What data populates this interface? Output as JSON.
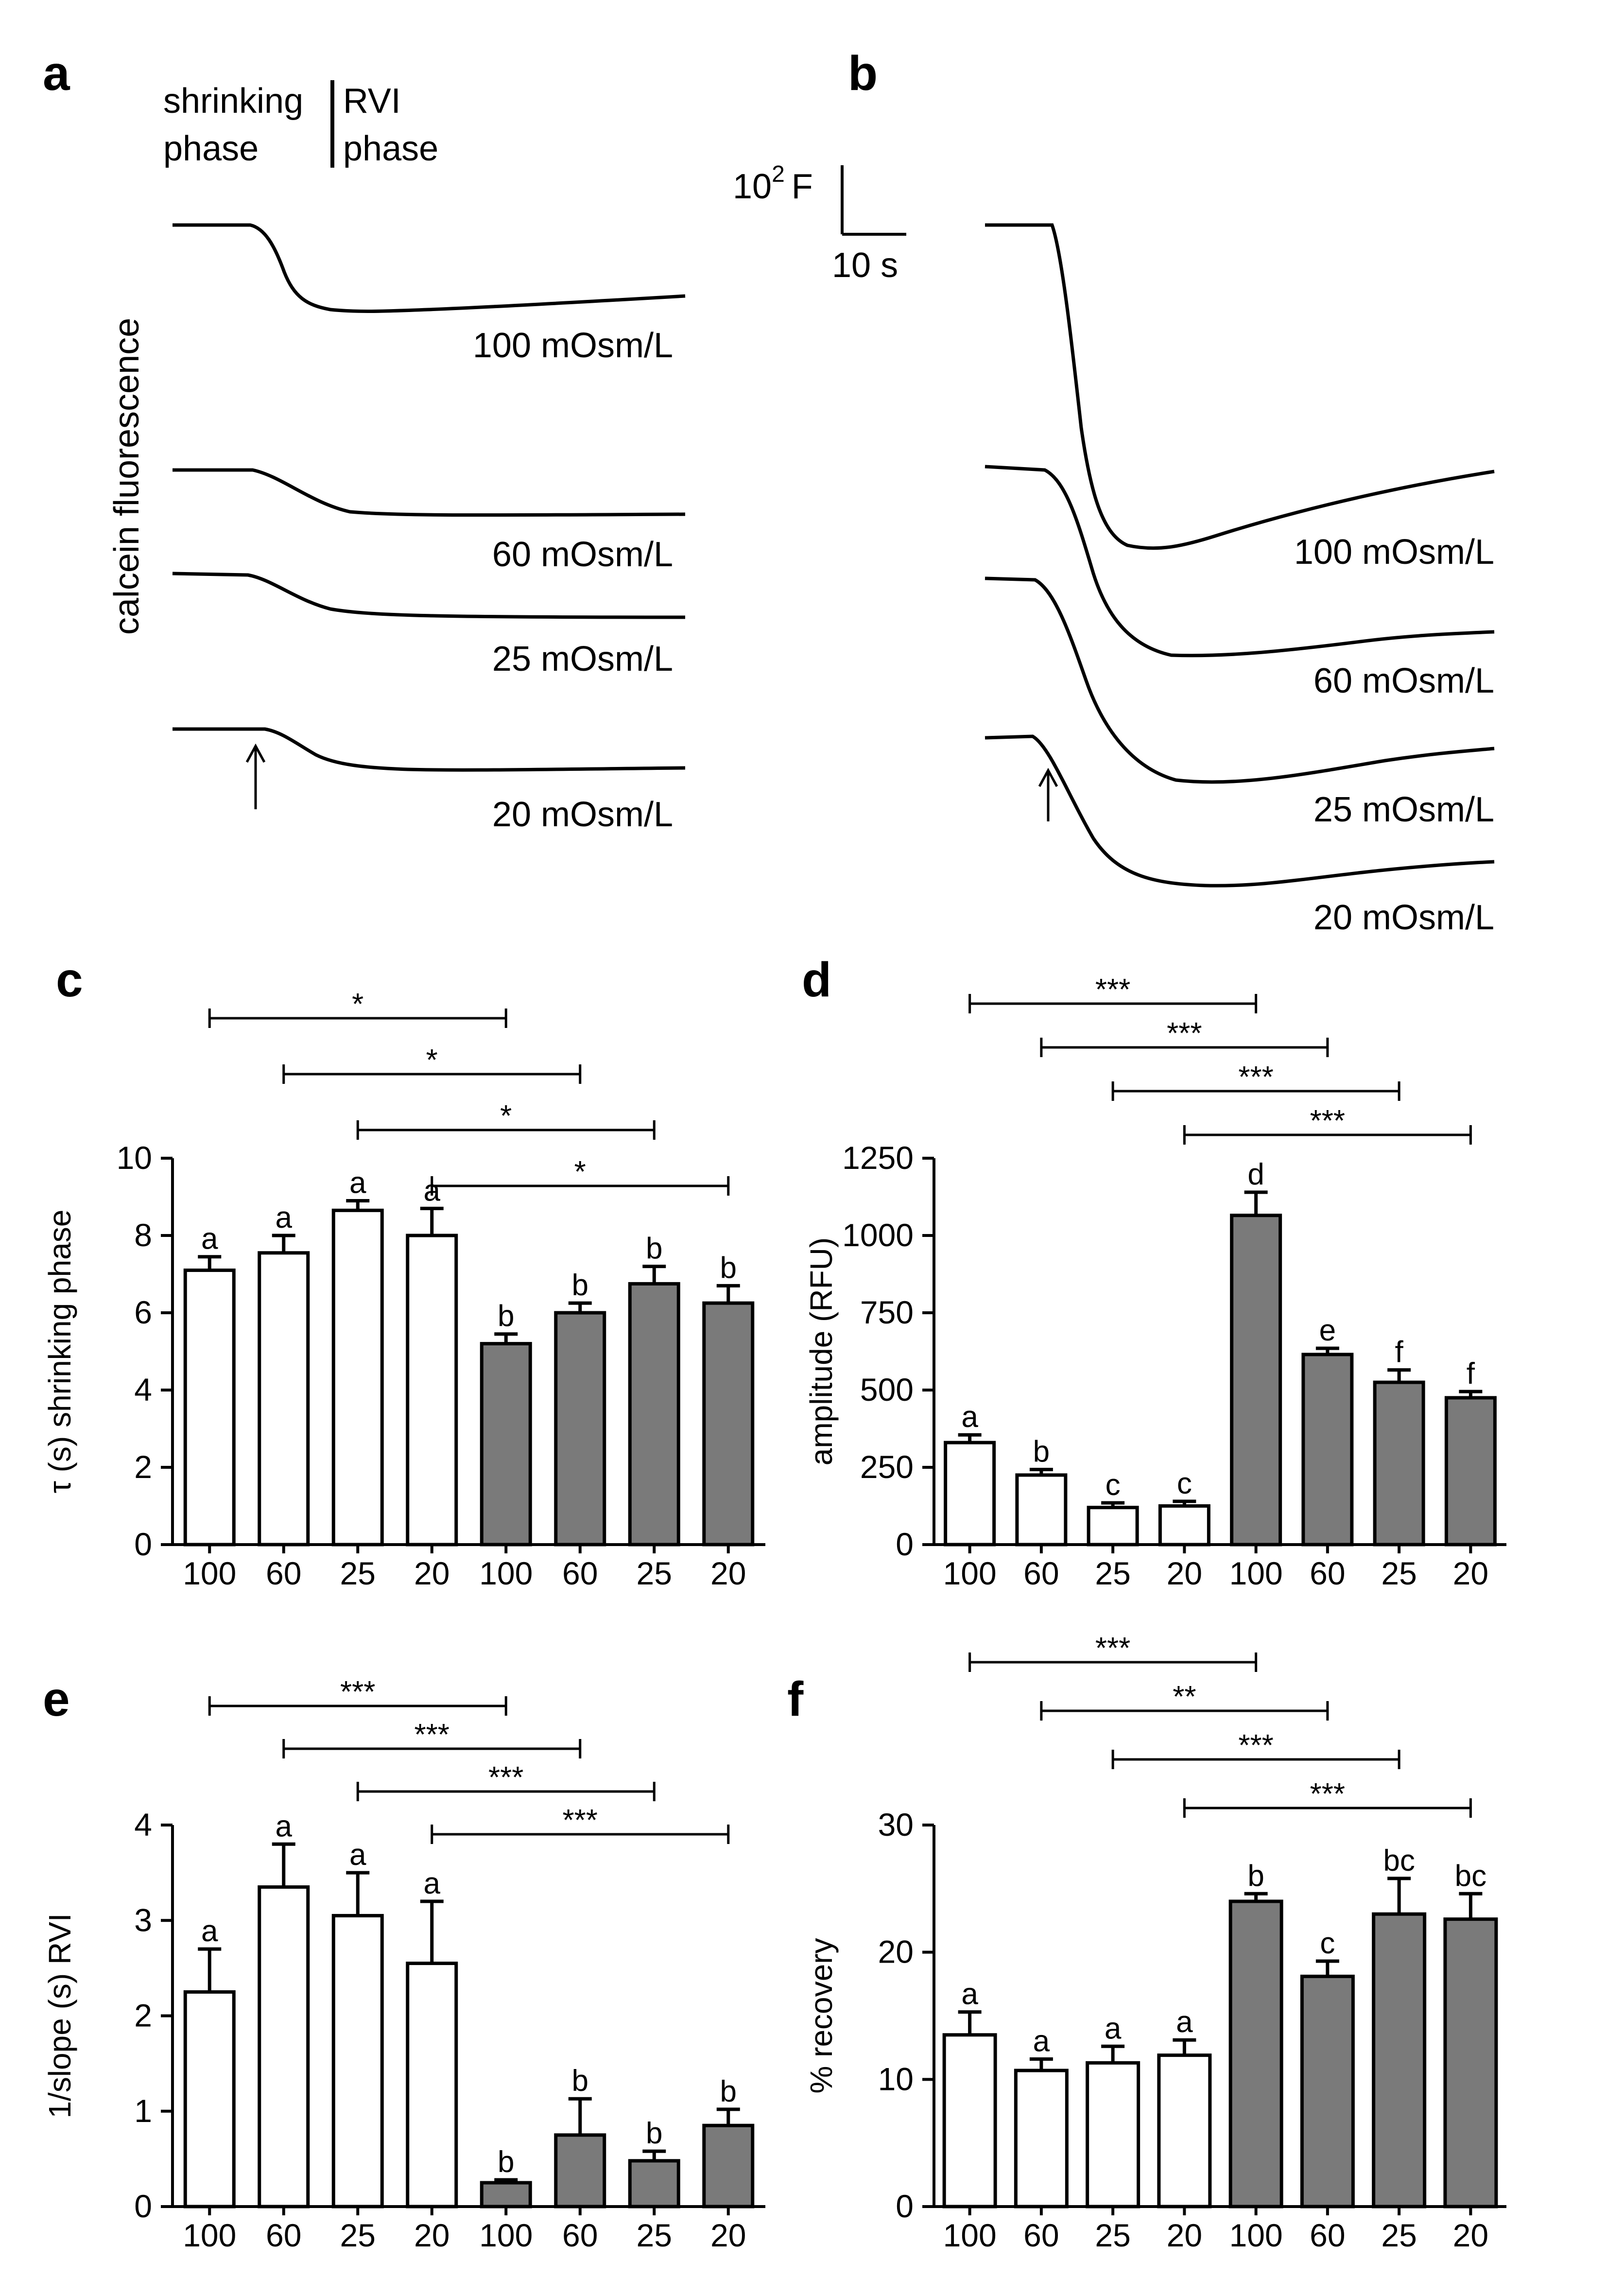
{
  "panels": {
    "a": {
      "letter": "a",
      "phase_left": [
        "shrinking",
        "phase"
      ],
      "phase_right": [
        "RVI",
        "phase"
      ],
      "ylabel": "calcein fluorescence",
      "traces": [
        "100 mOsm/L",
        "60 mOsm/L",
        "25 mOsm/L",
        "20 mOsm/L"
      ]
    },
    "b": {
      "letter": "b",
      "scale_bar": {
        "vertical_base": "10",
        "vertical_exp": "2",
        "vertical_unit": "F",
        "horizontal": "10 s"
      },
      "traces": [
        "100 mOsm/L",
        "60 mOsm/L",
        "25 mOsm/L",
        "20 mOsm/L"
      ]
    }
  },
  "chart_data": [
    {
      "panel": "c",
      "type": "bar",
      "ylabel": "τ (s) shrinking phase",
      "categories": [
        "100",
        "60",
        "25",
        "20",
        "100",
        "60",
        "25",
        "20"
      ],
      "values": [
        7.1,
        7.55,
        8.65,
        8.0,
        5.2,
        6.0,
        6.75,
        6.25
      ],
      "errors": [
        0.35,
        0.45,
        0.25,
        0.7,
        0.25,
        0.25,
        0.45,
        0.45
      ],
      "letters": [
        "a",
        "a",
        "a",
        "a",
        "b",
        "b",
        "b",
        "b"
      ],
      "fills": [
        "#ffffff",
        "#ffffff",
        "#ffffff",
        "#ffffff",
        "#7a7a7a",
        "#7a7a7a",
        "#7a7a7a",
        "#7a7a7a"
      ],
      "ylim": [
        0,
        10
      ],
      "yticks": [
        0,
        2,
        4,
        6,
        8,
        10
      ],
      "comparisons": [
        {
          "from": 0,
          "to": 4,
          "label": "*"
        },
        {
          "from": 1,
          "to": 5,
          "label": "*"
        },
        {
          "from": 2,
          "to": 6,
          "label": "*"
        },
        {
          "from": 3,
          "to": 7,
          "label": "*"
        }
      ]
    },
    {
      "panel": "d",
      "type": "bar",
      "ylabel": "amplitude (RFU)",
      "categories": [
        "100",
        "60",
        "25",
        "20",
        "100",
        "60",
        "25",
        "20"
      ],
      "values": [
        330,
        225,
        120,
        125,
        1065,
        615,
        525,
        475
      ],
      "errors": [
        25,
        18,
        15,
        15,
        75,
        20,
        40,
        20
      ],
      "letters": [
        "a",
        "b",
        "c",
        "c",
        "d",
        "e",
        "f",
        "f"
      ],
      "fills": [
        "#ffffff",
        "#ffffff",
        "#ffffff",
        "#ffffff",
        "#7a7a7a",
        "#7a7a7a",
        "#7a7a7a",
        "#7a7a7a"
      ],
      "ylim": [
        0,
        1250
      ],
      "yticks": [
        0,
        250,
        500,
        750,
        1000,
        1250
      ],
      "comparisons": [
        {
          "from": 0,
          "to": 4,
          "label": "***"
        },
        {
          "from": 1,
          "to": 5,
          "label": "***"
        },
        {
          "from": 2,
          "to": 6,
          "label": "***"
        },
        {
          "from": 3,
          "to": 7,
          "label": "***"
        }
      ]
    },
    {
      "panel": "e",
      "type": "bar",
      "ylabel": "1/slope (s) RVI",
      "categories": [
        "100",
        "60",
        "25",
        "20",
        "100",
        "60",
        "25",
        "20"
      ],
      "values": [
        2.25,
        3.35,
        3.05,
        2.55,
        0.25,
        0.75,
        0.48,
        0.85
      ],
      "errors": [
        0.45,
        0.45,
        0.45,
        0.65,
        0.03,
        0.38,
        0.1,
        0.17
      ],
      "letters": [
        "a",
        "a",
        "a",
        "a",
        "b",
        "b",
        "b",
        "b"
      ],
      "fills": [
        "#ffffff",
        "#ffffff",
        "#ffffff",
        "#ffffff",
        "#7a7a7a",
        "#7a7a7a",
        "#7a7a7a",
        "#7a7a7a"
      ],
      "ylim": [
        0,
        4
      ],
      "yticks": [
        0,
        1,
        2,
        3,
        4
      ],
      "comparisons": [
        {
          "from": 0,
          "to": 4,
          "label": "***"
        },
        {
          "from": 1,
          "to": 5,
          "label": "***"
        },
        {
          "from": 2,
          "to": 6,
          "label": "***"
        },
        {
          "from": 3,
          "to": 7,
          "label": "***"
        }
      ]
    },
    {
      "panel": "f",
      "type": "bar",
      "ylabel": "% recovery",
      "categories": [
        "100",
        "60",
        "25",
        "20",
        "100",
        "60",
        "25",
        "20"
      ],
      "values": [
        13.5,
        10.7,
        11.3,
        11.9,
        24.0,
        18.1,
        23.0,
        22.6
      ],
      "errors": [
        1.8,
        0.9,
        1.3,
        1.2,
        0.6,
        1.2,
        2.8,
        2.0
      ],
      "letters": [
        "a",
        "a",
        "a",
        "a",
        "b",
        "c",
        "bc",
        "bc"
      ],
      "fills": [
        "#ffffff",
        "#ffffff",
        "#ffffff",
        "#ffffff",
        "#7a7a7a",
        "#7a7a7a",
        "#7a7a7a",
        "#7a7a7a"
      ],
      "ylim": [
        0,
        30
      ],
      "yticks": [
        0,
        10,
        20,
        30
      ],
      "comparisons": [
        {
          "from": 0,
          "to": 4,
          "label": "***"
        },
        {
          "from": 1,
          "to": 5,
          "label": "**"
        },
        {
          "from": 2,
          "to": 6,
          "label": "***"
        },
        {
          "from": 3,
          "to": 7,
          "label": "***"
        }
      ]
    }
  ]
}
